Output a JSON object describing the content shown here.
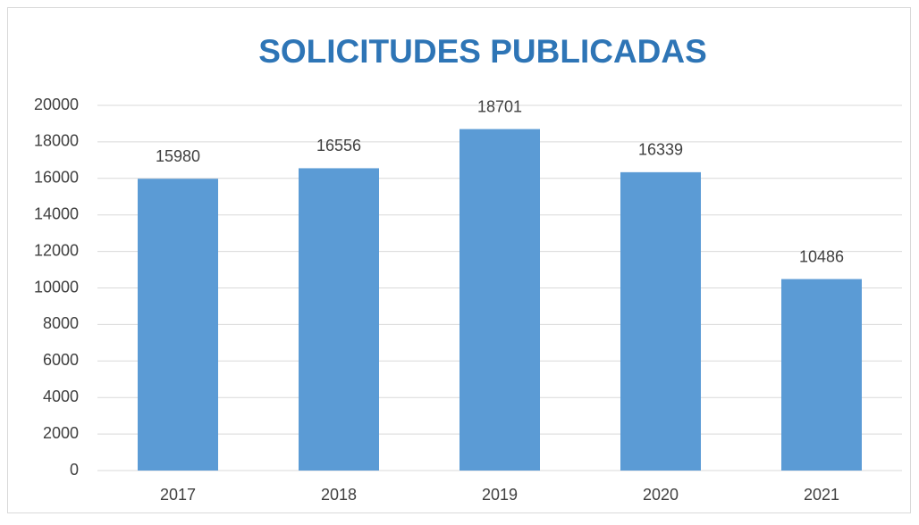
{
  "chart_data": {
    "type": "bar",
    "title": "SOLICITUDES PUBLICADAS",
    "categories": [
      "2017",
      "2018",
      "2019",
      "2020",
      "2021"
    ],
    "values": [
      15980,
      16556,
      18701,
      16339,
      10486
    ],
    "color": "#5b9bd5",
    "ylim": [
      0,
      20000
    ],
    "yticks": [
      0,
      2000,
      4000,
      6000,
      8000,
      10000,
      12000,
      14000,
      16000,
      18000,
      20000
    ],
    "grid": true
  }
}
